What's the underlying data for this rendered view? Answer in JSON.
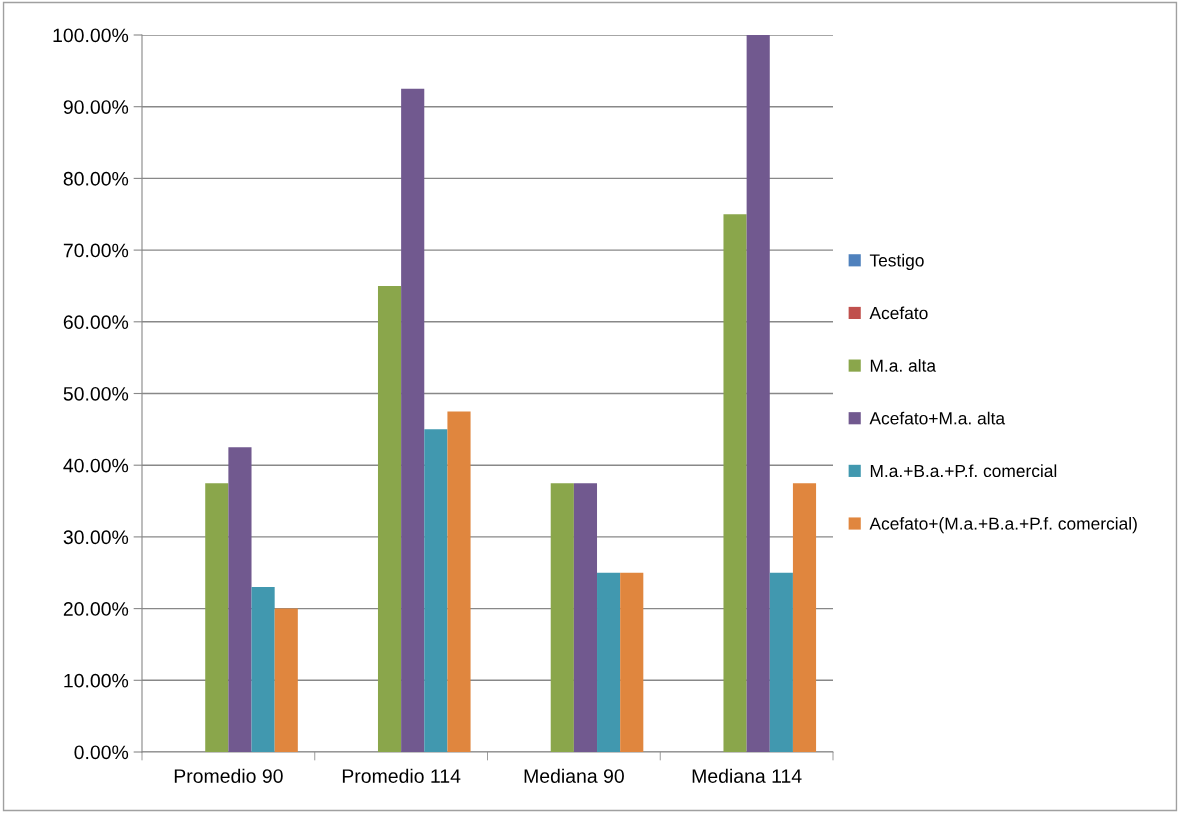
{
  "chart_data": {
    "type": "bar",
    "categories": [
      "Promedio 90",
      "Promedio 114",
      "Mediana 90",
      "Mediana 114"
    ],
    "series": [
      {
        "name": "Testigo",
        "color": "#4f81bd",
        "values": [
          0,
          0,
          0,
          0
        ]
      },
      {
        "name": "Acefato",
        "color": "#c0504d",
        "values": [
          0,
          0,
          0,
          0
        ]
      },
      {
        "name": "M.a. alta",
        "color": "#8aa64b",
        "values": [
          37.5,
          65,
          37.5,
          75
        ]
      },
      {
        "name": "Acefato+M.a. alta",
        "color": "#71598f",
        "values": [
          42.5,
          92.5,
          37.5,
          100
        ]
      },
      {
        "name": "M.a.+B.a.+P.f. comercial",
        "color": "#4198af",
        "values": [
          23,
          45,
          25,
          25
        ]
      },
      {
        "name": "Acefato+(M.a.+B.a.+P.f. comercial)",
        "color": "#e0863e",
        "values": [
          20,
          47.5,
          25,
          37.5
        ]
      }
    ],
    "ylim": [
      0,
      100
    ],
    "yticks": [
      {
        "value": 0,
        "label": "0.00%"
      },
      {
        "value": 10,
        "label": "10.00%"
      },
      {
        "value": 20,
        "label": "20.00%"
      },
      {
        "value": 30,
        "label": "30.00%"
      },
      {
        "value": 40,
        "label": "40.00%"
      },
      {
        "value": 50,
        "label": "50.00%"
      },
      {
        "value": 60,
        "label": "60.00%"
      },
      {
        "value": 70,
        "label": "70.00%"
      },
      {
        "value": 80,
        "label": "80.00%"
      },
      {
        "value": 90,
        "label": "90.00%"
      },
      {
        "value": 100,
        "label": "100.00%"
      }
    ],
    "grid": "y",
    "legend": "right"
  }
}
